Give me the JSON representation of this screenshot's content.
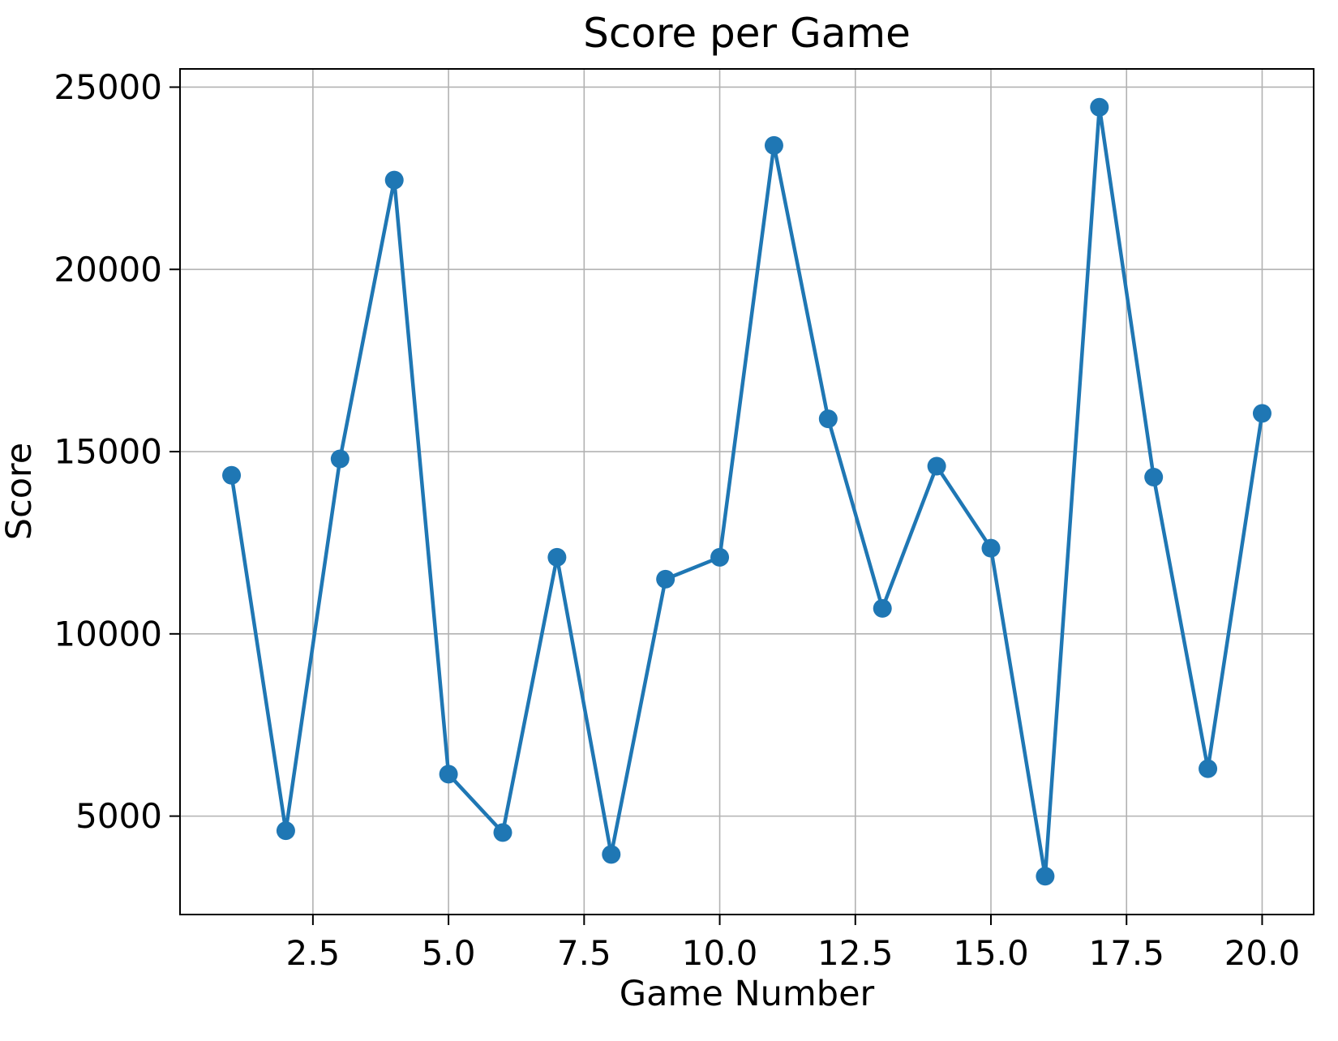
{
  "page": {
    "background": "#ffffff"
  },
  "chart_data": {
    "type": "line",
    "title": "Score per Game",
    "xlabel": "Game Number",
    "ylabel": "Score",
    "series": [
      {
        "name": "Score",
        "x": [
          1,
          2,
          3,
          4,
          5,
          6,
          7,
          8,
          9,
          10,
          11,
          12,
          13,
          14,
          15,
          16,
          17,
          18,
          19,
          20
        ],
        "y": [
          14350,
          4600,
          14800,
          22450,
          6150,
          4550,
          12100,
          3950,
          11500,
          12100,
          23400,
          15900,
          10700,
          14600,
          12350,
          3350,
          24450,
          14300,
          6300,
          16050
        ]
      }
    ],
    "xlim": [
      0.05,
      20.95
    ],
    "ylim": [
      2300,
      25500
    ],
    "xticks": [
      {
        "value": 2.5,
        "label": "2.5"
      },
      {
        "value": 5.0,
        "label": "5.0"
      },
      {
        "value": 7.5,
        "label": "7.5"
      },
      {
        "value": 10.0,
        "label": "10.0"
      },
      {
        "value": 12.5,
        "label": "12.5"
      },
      {
        "value": 15.0,
        "label": "15.0"
      },
      {
        "value": 17.5,
        "label": "17.5"
      },
      {
        "value": 20.0,
        "label": "20.0"
      }
    ],
    "yticks": [
      {
        "value": 5000,
        "label": "5000"
      },
      {
        "value": 10000,
        "label": "10000"
      },
      {
        "value": 15000,
        "label": "15000"
      },
      {
        "value": 20000,
        "label": "20000"
      },
      {
        "value": 25000,
        "label": "25000"
      }
    ],
    "grid": true,
    "legend": "none",
    "line_color": "#1f77b4",
    "marker": "circle",
    "grid_color": "#b2b2b2",
    "axis_color": "#000000",
    "text_color": "#000000"
  }
}
